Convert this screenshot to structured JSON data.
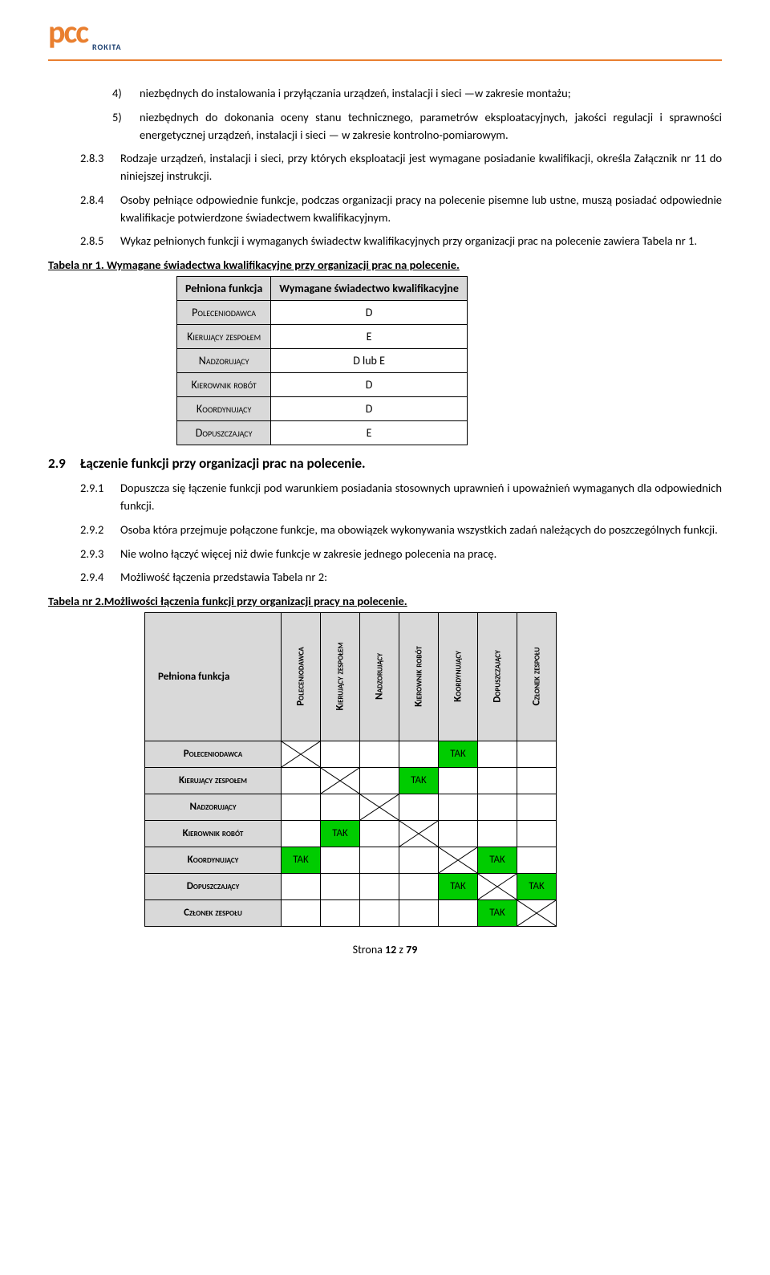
{
  "logo": {
    "main": "pcc",
    "sub": "ROKITA"
  },
  "items_top": [
    {
      "num": "4)",
      "text": "niezbędnych do instalowania i przyłączania urządzeń, instalacji i sieci —w zakresie montażu;"
    },
    {
      "num": "5)",
      "text": "niezbędnych do dokonania oceny stanu technicznego, parametrów eksploatacyjnych, jakości regulacji i sprawności energetycznej urządzeń, instalacji i sieci — w zakresie kontrolno-pomiarowym."
    }
  ],
  "para_283": {
    "num": "2.8.3",
    "text": "Rodzaje urządzeń, instalacji i sieci, przy których eksploatacji jest wymagane posiadanie kwalifikacji, określa Załącznik nr 11 do niniejszej instrukcji."
  },
  "para_284": {
    "num": "2.8.4",
    "text": "Osoby pełniące odpowiednie funkcje, podczas organizacji pracy na polecenie pisemne lub ustne, muszą posiadać odpowiednie kwalifikacje potwierdzone świadectwem kwalifikacyjnym."
  },
  "para_285": {
    "num": "2.8.5",
    "text": "Wykaz pełnionych funkcji i wymaganych świadectw kwalifikacyjnych przy organizacji prac na polecenie zawiera Tabela nr 1."
  },
  "table1_caption": "Tabela nr 1. Wymagane świadectwa kwalifikacyjne przy organizacji prac na polecenie.",
  "table1": {
    "headers": [
      "Pełniona funkcja",
      "Wymagane świadectwo kwalifikacyjne"
    ],
    "rows": [
      [
        "Poleceniodawca",
        "D"
      ],
      [
        "Kierujący zespołem",
        "E"
      ],
      [
        "Nadzorujący",
        "D lub E"
      ],
      [
        "Kierownik robót",
        "D"
      ],
      [
        "Koordynujący",
        "D"
      ],
      [
        "Dopuszczający",
        "E"
      ]
    ]
  },
  "section_29": {
    "num": "2.9",
    "title": "Łączenie funkcji przy organizacji prac na polecenie."
  },
  "para_291": {
    "num": "2.9.1",
    "text": "Dopuszcza się łączenie funkcji pod warunkiem posiadania stosownych uprawnień i upoważnień wymaganych dla odpowiednich funkcji."
  },
  "para_292": {
    "num": "2.9.2",
    "text": "Osoba która przejmuje połączone funkcje, ma obowiązek wykonywania wszystkich zadań należących do poszczególnych funkcji."
  },
  "para_293": {
    "num": "2.9.3",
    "text": "Nie wolno łączyć więcej niż dwie funkcje w zakresie jednego polecenia na pracę."
  },
  "para_294": {
    "num": "2.9.4",
    "text": "Możliwość łączenia przedstawia Tabela nr 2:"
  },
  "table2_caption": "Tabela nr 2.Możliwości łączenia funkcji przy organizacji pracy na polecenie.",
  "table2": {
    "corner": "Pełniona funkcja",
    "col_headers": [
      "Poleceniodawca",
      "Kierujący zespołem",
      "Nadzorujący",
      "Kierownik robót",
      "Koordynujący",
      "Dopuszczający",
      "Członek zespołu"
    ],
    "row_headers": [
      "Poleceniodawca",
      "Kierujący zespołem",
      "Nadzorujący",
      "Kierownik robót",
      "Koordynujący",
      "Dopuszczający",
      "Członek zespołu"
    ],
    "tak": "TAK",
    "matrix": [
      [
        "X",
        "",
        "",
        "",
        "T",
        "",
        ""
      ],
      [
        "",
        "X",
        "",
        "T",
        "",
        "",
        ""
      ],
      [
        "",
        "",
        "X",
        "",
        "",
        "",
        ""
      ],
      [
        "",
        "T",
        "",
        "X",
        "",
        "",
        ""
      ],
      [
        "T",
        "",
        "",
        "",
        "X",
        "T",
        ""
      ],
      [
        "",
        "",
        "",
        "",
        "T",
        "X",
        "T"
      ],
      [
        "",
        "",
        "",
        "",
        "",
        "T",
        "X"
      ]
    ]
  },
  "footer": {
    "prefix": "Strona ",
    "page": "12",
    "mid": " z ",
    "total": "79"
  },
  "colors": {
    "orange": "#e97f2f",
    "navy": "#1a3e6f",
    "header_bg": "#d9d9d9",
    "tak_bg": "#00cc00",
    "border": "#000000",
    "text": "#000000",
    "bg": "#ffffff"
  }
}
